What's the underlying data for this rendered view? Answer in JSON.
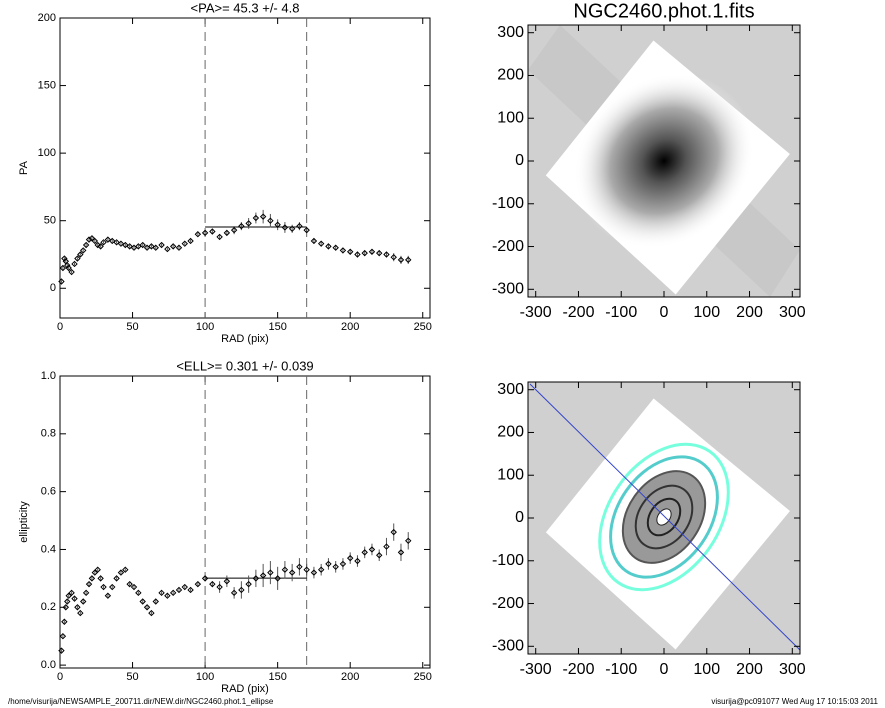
{
  "chart_data": [
    {
      "type": "scatter",
      "title": "<PA>=  45.3 +/-   4.8",
      "x_label": "RAD (pix)",
      "y_label": "PA",
      "xlim": [
        0,
        255
      ],
      "ylim": [
        -22,
        200
      ],
      "xticks": [
        0,
        50,
        100,
        150,
        200,
        250
      ],
      "yticks": [
        0,
        50,
        100,
        150,
        200
      ],
      "vlines": [
        100,
        170
      ],
      "mean": 45.3,
      "color": "#000000",
      "x": [
        1,
        2,
        3,
        4,
        5,
        6,
        8,
        10,
        12,
        14,
        16,
        18,
        20,
        22,
        24,
        26,
        28,
        30,
        33,
        36,
        39,
        42,
        45,
        48,
        51,
        54,
        57,
        60,
        63,
        66,
        70,
        74,
        78,
        82,
        86,
        90,
        95,
        100,
        105,
        110,
        115,
        120,
        125,
        130,
        135,
        140,
        145,
        150,
        155,
        160,
        165,
        170,
        175,
        180,
        185,
        190,
        195,
        200,
        205,
        210,
        215,
        220,
        225,
        230,
        235,
        240
      ],
      "values": [
        5,
        15,
        22,
        20,
        17,
        15,
        12,
        18,
        22,
        25,
        28,
        32,
        36,
        37,
        35,
        32,
        31,
        34,
        36,
        35,
        34,
        33,
        32,
        31,
        30,
        31,
        32,
        30,
        31,
        30,
        32,
        29,
        31,
        30,
        33,
        35,
        40,
        41,
        42,
        38,
        41,
        43,
        46,
        48,
        52,
        53,
        50,
        47,
        45,
        44,
        46,
        43,
        35,
        33,
        31,
        30,
        28,
        27,
        25,
        26,
        27,
        26,
        25,
        23,
        21,
        21
      ],
      "errors": [
        1,
        1,
        1,
        1,
        1,
        1,
        1,
        1,
        1,
        1,
        1,
        1,
        1,
        1,
        1,
        1,
        1,
        1,
        1,
        1,
        1,
        1,
        1,
        1,
        1,
        1,
        1,
        1,
        1,
        1,
        1,
        1,
        1,
        1,
        1,
        1,
        1,
        2,
        2,
        2,
        2,
        3,
        3,
        4,
        4,
        5,
        5,
        4,
        4,
        3,
        3,
        2,
        2,
        2,
        2,
        2,
        2,
        2,
        2,
        2,
        2,
        2,
        2,
        3,
        3,
        3
      ]
    },
    {
      "type": "scatter",
      "title": "<ELL>= 0.301 +/-  0.039",
      "x_label": "RAD (pix)",
      "y_label": "ellipticity",
      "xlim": [
        0,
        255
      ],
      "ylim": [
        -0.01,
        1.0
      ],
      "xticks": [
        0,
        50,
        100,
        150,
        200,
        250
      ],
      "yticks": [
        {
          "value": 0,
          "label": "0.0"
        },
        0.2,
        0.4,
        0.6,
        0.8,
        {
          "value": 1,
          "label": "1.0"
        }
      ],
      "vlines": [
        100,
        170
      ],
      "mean": 0.301,
      "color": "#000000",
      "x": [
        1,
        2,
        3,
        4,
        5,
        6,
        8,
        10,
        12,
        14,
        16,
        18,
        20,
        22,
        24,
        26,
        28,
        30,
        33,
        36,
        39,
        42,
        45,
        48,
        51,
        54,
        57,
        60,
        63,
        66,
        70,
        74,
        78,
        82,
        86,
        90,
        95,
        100,
        105,
        110,
        115,
        120,
        125,
        130,
        135,
        140,
        145,
        150,
        155,
        160,
        165,
        170,
        175,
        180,
        185,
        190,
        195,
        200,
        205,
        210,
        215,
        220,
        225,
        230,
        235,
        240
      ],
      "values": [
        0.05,
        0.1,
        0.15,
        0.2,
        0.22,
        0.24,
        0.25,
        0.23,
        0.2,
        0.18,
        0.22,
        0.25,
        0.28,
        0.3,
        0.32,
        0.33,
        0.3,
        0.27,
        0.24,
        0.27,
        0.3,
        0.32,
        0.33,
        0.28,
        0.27,
        0.25,
        0.22,
        0.2,
        0.18,
        0.22,
        0.25,
        0.24,
        0.25,
        0.26,
        0.27,
        0.26,
        0.28,
        0.3,
        0.28,
        0.27,
        0.29,
        0.25,
        0.26,
        0.28,
        0.3,
        0.31,
        0.32,
        0.3,
        0.33,
        0.32,
        0.34,
        0.33,
        0.32,
        0.33,
        0.35,
        0.34,
        0.35,
        0.37,
        0.36,
        0.39,
        0.4,
        0.38,
        0.41,
        0.46,
        0.39,
        0.43
      ],
      "errors": [
        0.005,
        0.005,
        0.005,
        0.005,
        0.005,
        0.005,
        0.005,
        0.005,
        0.005,
        0.005,
        0.005,
        0.005,
        0.005,
        0.005,
        0.005,
        0.005,
        0.005,
        0.005,
        0.005,
        0.005,
        0.005,
        0.005,
        0.005,
        0.005,
        0.005,
        0.005,
        0.005,
        0.005,
        0.005,
        0.005,
        0.005,
        0.005,
        0.005,
        0.005,
        0.005,
        0.005,
        0.005,
        0.01,
        0.01,
        0.02,
        0.02,
        0.02,
        0.03,
        0.03,
        0.03,
        0.04,
        0.04,
        0.04,
        0.03,
        0.03,
        0.03,
        0.02,
        0.02,
        0.02,
        0.02,
        0.02,
        0.02,
        0.02,
        0.02,
        0.02,
        0.02,
        0.02,
        0.03,
        0.03,
        0.03,
        0.03
      ]
    },
    {
      "type": "image",
      "title": "NGC2460.phot.1.fits",
      "xlim": [
        -318,
        318
      ],
      "ylim": [
        -318,
        318
      ],
      "xticks": [
        -300,
        -200,
        -100,
        0,
        100,
        200,
        300
      ],
      "yticks": [
        -300,
        -200,
        -100,
        0,
        100,
        200,
        300
      ]
    },
    {
      "type": "image",
      "xlim": [
        -318,
        318
      ],
      "ylim": [
        -318,
        318
      ],
      "xticks": [
        -300,
        -200,
        -100,
        0,
        100,
        200,
        300
      ],
      "yticks": [
        -300,
        -200,
        -100,
        0,
        100,
        200,
        300
      ]
    }
  ],
  "footer": {
    "left": "/home/visurija/NEWSAMPLE_200711.dir/NEW.dir/NGC2460.phot.1_ellipse",
    "right": "visurija@pc091077  Wed Aug 17 10:15:03 2011"
  }
}
